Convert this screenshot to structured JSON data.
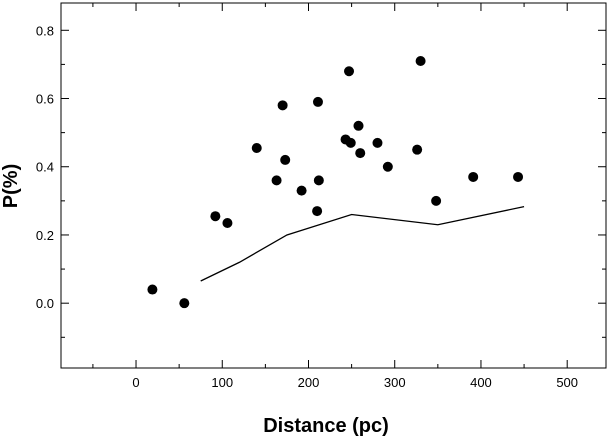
{
  "chart_data": {
    "type": "scatter",
    "xlabel": "Distance (pc)",
    "ylabel": "P(%)",
    "xlim": [
      -87,
      545
    ],
    "ylim": [
      -0.19,
      0.88
    ],
    "x_ticks": [
      0,
      100,
      200,
      300,
      400,
      500
    ],
    "x_tick_labels": [
      "0",
      "100",
      "200",
      "300",
      "400",
      "500"
    ],
    "y_ticks": [
      0.0,
      0.2,
      0.4,
      0.6,
      0.8
    ],
    "y_tick_labels": [
      "0.0",
      "0.2",
      "0.4",
      "0.6",
      "0.8"
    ],
    "grid": false,
    "series": [
      {
        "kind": "scatter",
        "color": "#000000",
        "x": [
          19,
          56,
          92,
          106,
          140,
          163,
          170,
          173,
          192,
          210,
          211,
          212,
          243,
          247,
          249,
          258,
          260,
          280,
          292,
          326,
          330,
          348,
          391,
          443
        ],
        "y": [
          0.04,
          0.0,
          0.255,
          0.235,
          0.455,
          0.36,
          0.58,
          0.42,
          0.33,
          0.27,
          0.59,
          0.36,
          0.48,
          0.68,
          0.47,
          0.52,
          0.44,
          0.47,
          0.4,
          0.45,
          0.71,
          0.3,
          0.37,
          0.37
        ]
      },
      {
        "kind": "line",
        "color": "#000000",
        "x": [
          75,
          120,
          175,
          250,
          350,
          450
        ],
        "y": [
          0.065,
          0.12,
          0.2,
          0.26,
          0.23,
          0.283
        ]
      }
    ]
  }
}
